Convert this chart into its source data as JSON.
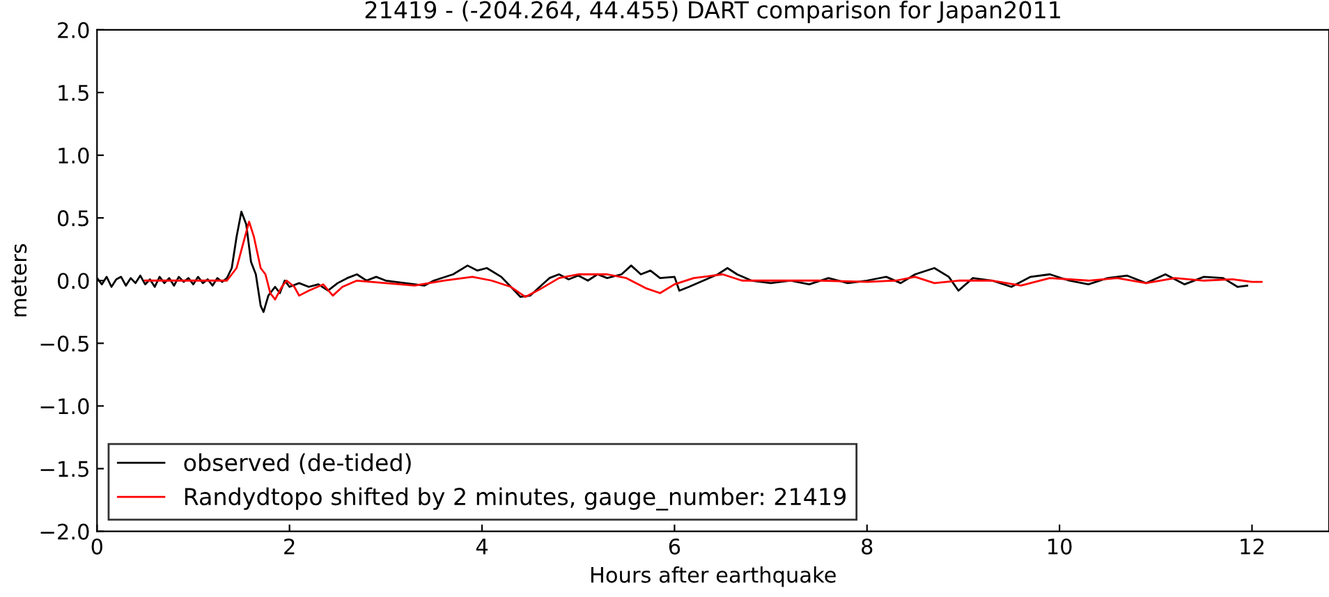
{
  "chart_data": {
    "type": "line",
    "title": "21419 - (-204.264, 44.455) DART comparison for Japan2011",
    "xlabel": "Hours after earthquake",
    "ylabel": "meters",
    "xlim": [
      0,
      12.8
    ],
    "xticks": [
      0,
      2,
      4,
      6,
      8,
      10,
      12
    ],
    "ylim": [
      -2.0,
      2.0
    ],
    "yticks": [
      {
        "value": -2,
        "label": "−2.0"
      },
      {
        "value": -1.5,
        "label": "−1.5"
      },
      {
        "value": -1,
        "label": "−1.0"
      },
      {
        "value": -0.5,
        "label": "−0.5"
      },
      {
        "value": 0,
        "label": "0.0"
      },
      {
        "value": 0.5,
        "label": "0.5"
      },
      {
        "value": 1,
        "label": "1.0"
      },
      {
        "value": 1.5,
        "label": "1.5"
      },
      {
        "value": 2,
        "label": "2.0"
      }
    ],
    "grid": false,
    "legend": "bottom left",
    "marker": "none",
    "line_style": "solid",
    "series": [
      {
        "name": "observed (de-tided)",
        "color": "#000000",
        "x": [
          0,
          0.05,
          0.1,
          0.15,
          0.2,
          0.25,
          0.3,
          0.35,
          0.4,
          0.45,
          0.5,
          0.55,
          0.6,
          0.65,
          0.7,
          0.75,
          0.8,
          0.85,
          0.9,
          0.95,
          1.0,
          1.05,
          1.1,
          1.15,
          1.2,
          1.25,
          1.3,
          1.35,
          1.4,
          1.45,
          1.5,
          1.55,
          1.6,
          1.65,
          1.7,
          1.73,
          1.78,
          1.85,
          1.9,
          1.95,
          2.0,
          2.1,
          2.2,
          2.3,
          2.4,
          2.5,
          2.6,
          2.7,
          2.8,
          2.9,
          3.0,
          3.2,
          3.4,
          3.5,
          3.7,
          3.85,
          3.95,
          4.05,
          4.2,
          4.3,
          4.4,
          4.5,
          4.6,
          4.7,
          4.8,
          4.9,
          5.0,
          5.1,
          5.2,
          5.3,
          5.45,
          5.55,
          5.65,
          5.75,
          5.85,
          6.0,
          6.05,
          6.15,
          6.3,
          6.45,
          6.55,
          6.65,
          6.8,
          7.0,
          7.2,
          7.4,
          7.6,
          7.8,
          8.0,
          8.2,
          8.35,
          8.5,
          8.7,
          8.85,
          8.95,
          9.1,
          9.3,
          9.5,
          9.7,
          9.9,
          10.1,
          10.3,
          10.5,
          10.7,
          10.9,
          11.1,
          11.3,
          11.5,
          11.7,
          11.85,
          11.95
        ],
        "values": [
          0.02,
          -0.03,
          0.03,
          -0.05,
          0.01,
          0.03,
          -0.04,
          0.02,
          -0.02,
          0.04,
          -0.03,
          0.01,
          -0.05,
          0.03,
          -0.02,
          0.02,
          -0.04,
          0.03,
          -0.01,
          0.02,
          -0.03,
          0.03,
          -0.02,
          0.01,
          -0.04,
          0.02,
          -0.01,
          0.02,
          0.1,
          0.35,
          0.55,
          0.45,
          0.15,
          0.05,
          -0.2,
          -0.25,
          -0.12,
          -0.05,
          -0.1,
          0.0,
          -0.05,
          -0.02,
          -0.05,
          -0.03,
          -0.08,
          -0.02,
          0.02,
          0.05,
          0.0,
          0.03,
          0.0,
          -0.02,
          -0.04,
          0.0,
          0.05,
          0.12,
          0.08,
          0.1,
          0.03,
          -0.05,
          -0.13,
          -0.12,
          -0.05,
          0.02,
          0.05,
          0.01,
          0.04,
          0.0,
          0.05,
          0.02,
          0.05,
          0.12,
          0.05,
          0.08,
          0.02,
          0.03,
          -0.08,
          -0.05,
          0.0,
          0.05,
          0.1,
          0.05,
          0.0,
          -0.02,
          0.0,
          -0.03,
          0.02,
          -0.02,
          0.0,
          0.03,
          -0.02,
          0.05,
          0.1,
          0.03,
          -0.08,
          0.02,
          0.0,
          -0.05,
          0.03,
          0.05,
          0.0,
          -0.03,
          0.02,
          0.04,
          -0.02,
          0.05,
          -0.03,
          0.03,
          0.02,
          -0.05,
          -0.04
        ]
      },
      {
        "name": "Randydtopo shifted by 2 minutes, gauge_number: 21419",
        "color": "#ff0000",
        "x": [
          0.5,
          1.0,
          1.35,
          1.45,
          1.52,
          1.58,
          1.63,
          1.7,
          1.75,
          1.8,
          1.85,
          1.92,
          1.97,
          2.05,
          2.1,
          2.2,
          2.35,
          2.45,
          2.55,
          2.7,
          3.0,
          3.3,
          3.6,
          3.9,
          4.1,
          4.3,
          4.45,
          4.6,
          4.8,
          5.0,
          5.3,
          5.5,
          5.7,
          5.85,
          6.0,
          6.2,
          6.5,
          6.7,
          7.0,
          7.5,
          8.0,
          8.3,
          8.5,
          8.7,
          8.95,
          9.3,
          9.6,
          9.9,
          10.3,
          10.6,
          10.9,
          11.2,
          11.5,
          11.8,
          12.0,
          12.1
        ],
        "values": [
          0.0,
          0.0,
          0.0,
          0.1,
          0.3,
          0.47,
          0.35,
          0.1,
          0.05,
          -0.1,
          -0.15,
          -0.05,
          0.0,
          -0.05,
          -0.12,
          -0.08,
          -0.03,
          -0.12,
          -0.05,
          0.0,
          -0.02,
          -0.04,
          0.0,
          0.03,
          0.0,
          -0.05,
          -0.13,
          -0.07,
          0.02,
          0.05,
          0.05,
          0.02,
          -0.06,
          -0.1,
          -0.03,
          0.02,
          0.05,
          0.0,
          0.0,
          0.0,
          -0.01,
          0.0,
          0.03,
          -0.02,
          0.0,
          0.0,
          -0.04,
          0.02,
          0.0,
          0.02,
          -0.02,
          0.02,
          0.0,
          0.01,
          -0.01,
          -0.01
        ]
      }
    ]
  }
}
